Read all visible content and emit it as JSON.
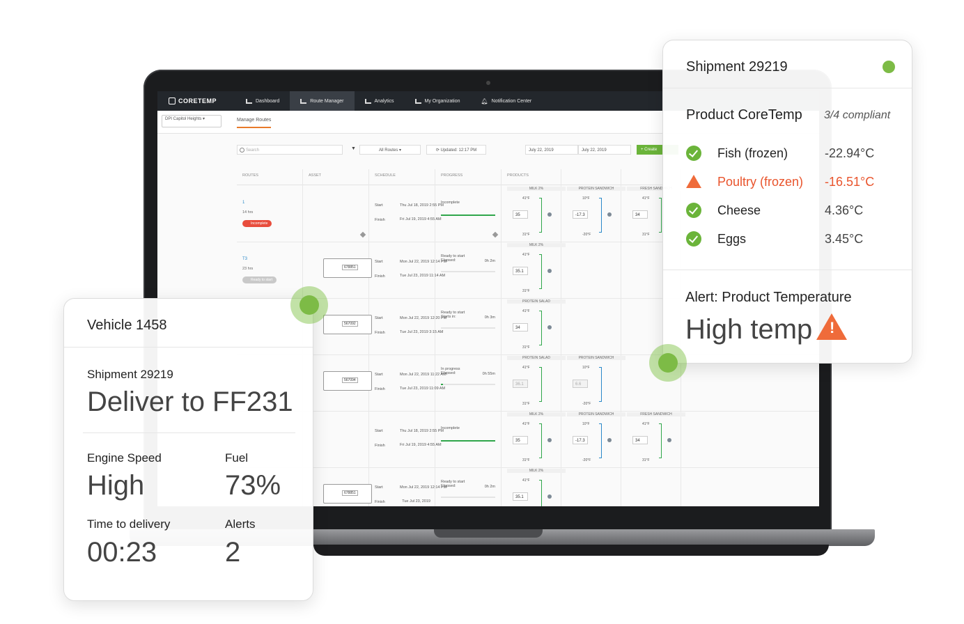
{
  "app": {
    "logo": "CORETEMP",
    "nav": [
      "Dashboard",
      "Route Manager",
      "Analytics",
      "My Organization",
      "Notification Center"
    ],
    "org_select": "DPI Capitol Heights",
    "subnav": "Manage Routes",
    "search_placeholder": "Search",
    "routes_filter": "All Routes",
    "updated": "Updated: 12:17 PM",
    "date_from": "July 22, 2019",
    "date_to": "July 22, 2019",
    "create_label": "Create",
    "columns": [
      "ROUTES",
      "ASSET",
      "SCHEDULE",
      "PROGRESS",
      "PRODUCTS"
    ],
    "start_label": "Start",
    "finish_label": "Finish",
    "rows": [
      {
        "id": "1",
        "hrs": "14 hrs",
        "badge": "Incomplete",
        "asset": "",
        "start": "Thu Jul 18, 2019 2:55 PM",
        "finish": "Fri Jul 19, 2019 4:55 AM",
        "progress": "Incomplete",
        "progress_sub": "",
        "elapsed": "",
        "fill": 1.0
      },
      {
        "id": "T3",
        "hrs": "23 hrs",
        "badge": "Ready to start",
        "asset": "678851",
        "start": "Mon Jul 22, 2019 12:14 PM",
        "finish": "Tue Jul 23, 2019 11:14 AM",
        "progress": "Ready to start",
        "progress_sub": "Elapsed:",
        "elapsed": "0h 2m",
        "fill": 0.0
      },
      {
        "id": "",
        "hrs": "",
        "badge": "",
        "asset": "567092",
        "start": "Mon Jul 22, 2019 12:20 PM",
        "finish": "Tue Jul 23, 2019 3:15 AM",
        "progress": "Ready to start",
        "progress_sub": "Starts in:",
        "elapsed": "0h 3m",
        "fill": 0.0
      },
      {
        "id": "",
        "hrs": "",
        "badge": "",
        "asset": "567094",
        "start": "Mon Jul 22, 2019 11:22 AM",
        "finish": "Tue Jul 23, 2019 11:09 AM",
        "progress": "In progress",
        "progress_sub": "Elapsed:",
        "elapsed": "0h 55m",
        "fill": 0.04
      },
      {
        "id": "",
        "hrs": "",
        "badge": "",
        "asset": "",
        "start": "Thu Jul 18, 2019 2:55 PM",
        "finish": "Fri Jul 19, 2019 4:55 AM",
        "progress": "Incomplete",
        "progress_sub": "",
        "elapsed": "",
        "fill": 1.0
      },
      {
        "id": "",
        "hrs": "",
        "badge": "",
        "asset": "678851",
        "start": "Mon Jul 22, 2019 12:14 PM",
        "finish": "Tue Jul 23, 2019 ",
        "progress": "Ready to start",
        "progress_sub": "Elapsed:",
        "elapsed": "0h 2m",
        "fill": 0.0
      }
    ],
    "products": {
      "milk": {
        "name": "MILK 2%",
        "hi": "41°F",
        "lo": "31°F",
        "value": "35"
      },
      "milk_b": {
        "name": "MILK 2%",
        "hi": "41°F",
        "lo": "31°F",
        "value": "35.1"
      },
      "protein_salad": {
        "name": "PROTEIN SALAD",
        "hi": "41°F",
        "lo": "31°F",
        "value": "34"
      },
      "protein_salad_b": {
        "name": "PROTEIN SALAD",
        "hi": "41°F",
        "lo": "31°F",
        "value": "36.1"
      },
      "protein_sandwich": {
        "name": "PROTEIN SANDWICH",
        "hi": "10°F",
        "lo": "-20°F",
        "value": "-17.3"
      },
      "protein_sandwich_b": {
        "name": "PROTEIN SANDWICH",
        "hi": "10°F",
        "lo": "-20°F",
        "value": "6.6"
      },
      "fresh_sandwich": {
        "name": "FRESH SANDWICH",
        "hi": "41°F",
        "lo": "31°F",
        "value": "34"
      }
    }
  },
  "vehicle_card": {
    "title": "Vehicle 1458",
    "shipment": "Shipment 29219",
    "destination": "Deliver to FF231",
    "engine_label": "Engine Speed",
    "engine_value": "High",
    "fuel_label": "Fuel",
    "fuel_value": "73%",
    "time_label": "Time to delivery",
    "time_value": "00:23",
    "alerts_label": "Alerts",
    "alerts_value": "2"
  },
  "shipment_card": {
    "title": "Shipment 29219",
    "status_color": "#7dbb46",
    "product_title": "Product CoreTemp",
    "compliance": "3/4 compliant",
    "products": [
      {
        "name": "Fish (frozen)",
        "temp": "-22.94°C",
        "status": "ok"
      },
      {
        "name": "Poultry (frozen)",
        "temp": "-16.51°C",
        "status": "warning"
      },
      {
        "name": "Cheese",
        "temp": "4.36°C",
        "status": "ok"
      },
      {
        "name": "Eggs",
        "temp": "3.45°C",
        "status": "ok"
      }
    ],
    "alert_label": "Alert: Product Temperature",
    "alert_value": "High temp"
  },
  "colors": {
    "accent_green": "#6bb43a",
    "warning_orange": "#ef6b3a",
    "nav_dark": "#23272c"
  }
}
